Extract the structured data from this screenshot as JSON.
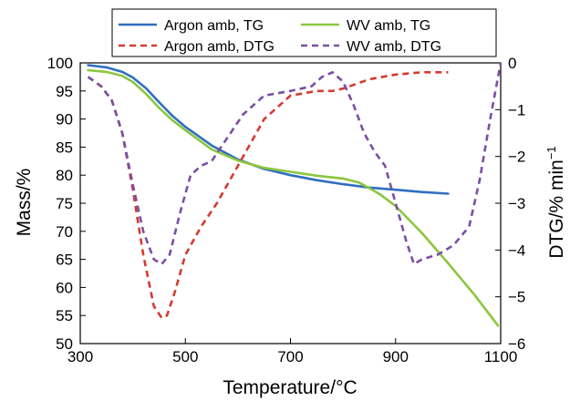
{
  "chart_data": {
    "type": "line",
    "xlabel": "Temperature/°C",
    "ylabel_left": "Mass/%",
    "ylabel_right_base": "DTG/% min",
    "ylabel_right_sup": "−1",
    "xlim": [
      300,
      1100
    ],
    "ylim_left": [
      50,
      100
    ],
    "ylim_right": [
      -6,
      0
    ],
    "x_ticks": [
      300,
      500,
      700,
      900,
      1100
    ],
    "x_tick_labels": [
      "300",
      "500",
      "700",
      "900",
      "1100"
    ],
    "y_left_ticks": [
      100,
      95,
      90,
      85,
      80,
      75,
      70,
      65,
      60,
      55,
      50
    ],
    "y_left_tick_labels": [
      "100",
      "95",
      "90",
      "85",
      "80",
      "75",
      "70",
      "65",
      "60",
      "55",
      "50"
    ],
    "y_right_ticks": [
      0,
      -1,
      -2,
      -3,
      -4,
      -5,
      -6
    ],
    "y_right_tick_labels": [
      "0",
      "−1",
      "−2",
      "−3",
      "−4",
      "−5",
      "−6"
    ],
    "grid": false,
    "legend_position": "top-center",
    "series": [
      {
        "name": "Argon amb, TG",
        "axis": "left",
        "color": "#2f6fc0",
        "dash": "solid",
        "x": [
          315,
          350,
          380,
          400,
          425,
          450,
          475,
          500,
          550,
          600,
          650,
          700,
          750,
          800,
          850,
          900,
          950,
          1000
        ],
        "y": [
          99.6,
          99.2,
          98.4,
          97.4,
          95.5,
          93.0,
          90.6,
          88.6,
          85.3,
          82.8,
          81.1,
          80.0,
          79.1,
          78.4,
          77.8,
          77.4,
          77.0,
          76.7
        ]
      },
      {
        "name": "WV amb, TG",
        "axis": "left",
        "color": "#8cc63f",
        "dash": "solid",
        "x": [
          315,
          350,
          380,
          400,
          425,
          450,
          475,
          500,
          550,
          600,
          650,
          700,
          750,
          800,
          830,
          850,
          870,
          900,
          950,
          1000,
          1050,
          1095
        ],
        "y": [
          98.7,
          98.4,
          97.7,
          96.6,
          94.5,
          92.0,
          89.8,
          88.0,
          84.6,
          82.6,
          81.3,
          80.6,
          79.9,
          79.4,
          78.7,
          77.7,
          76.6,
          74.5,
          69.7,
          64.3,
          58.7,
          53.2
        ]
      },
      {
        "name": "Argon amb, DTG",
        "axis": "right",
        "color": "#d63a2f",
        "dash": "dashed",
        "x": [
          315,
          340,
          360,
          380,
          400,
          420,
          440,
          455,
          465,
          480,
          500,
          530,
          560,
          600,
          650,
          700,
          750,
          780,
          800,
          850,
          900,
          950,
          1000
        ],
        "y": [
          -0.3,
          -0.5,
          -0.8,
          -1.5,
          -2.7,
          -4.1,
          -5.2,
          -5.45,
          -5.4,
          -4.9,
          -4.1,
          -3.5,
          -3.0,
          -2.2,
          -1.2,
          -0.7,
          -0.6,
          -0.6,
          -0.55,
          -0.35,
          -0.25,
          -0.2,
          -0.2
        ]
      },
      {
        "name": "WV amb, DTG",
        "axis": "right",
        "color": "#7a4fa5",
        "dash": "dashed",
        "x": [
          315,
          340,
          360,
          380,
          400,
          420,
          440,
          455,
          470,
          490,
          510,
          530,
          550,
          580,
          610,
          650,
          700,
          740,
          760,
          780,
          800,
          820,
          840,
          860,
          880,
          900,
          920,
          935,
          950,
          980,
          1010,
          1040,
          1060,
          1080,
          1095,
          1100
        ],
        "y": [
          -0.3,
          -0.5,
          -0.8,
          -1.5,
          -2.6,
          -3.6,
          -4.2,
          -4.3,
          -4.1,
          -3.2,
          -2.4,
          -2.2,
          -2.1,
          -1.6,
          -1.1,
          -0.7,
          -0.6,
          -0.5,
          -0.3,
          -0.2,
          -0.4,
          -0.9,
          -1.5,
          -1.9,
          -2.2,
          -3.0,
          -3.8,
          -4.3,
          -4.2,
          -4.1,
          -3.9,
          -3.5,
          -2.5,
          -1.2,
          -0.3,
          0.0
        ]
      }
    ]
  }
}
